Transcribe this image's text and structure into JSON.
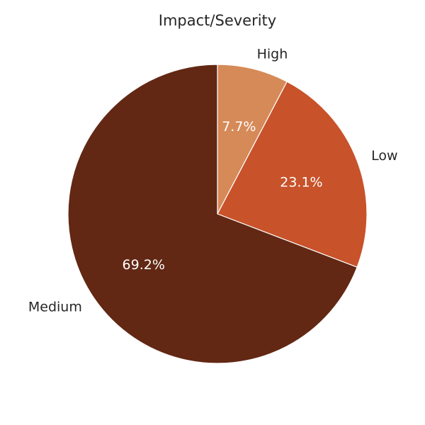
{
  "chart_data": {
    "type": "pie",
    "title": "Impact/Severity",
    "start": "top",
    "direction": "clockwise",
    "slices": [
      {
        "label": "High",
        "value": 7.7,
        "pct_label": "7.7%",
        "color": "#d68a58"
      },
      {
        "label": "Low",
        "value": 23.1,
        "pct_label": "23.1%",
        "color": "#c8522a"
      },
      {
        "label": "Medium",
        "value": 69.2,
        "pct_label": "69.2%",
        "color": "#622814"
      }
    ]
  }
}
